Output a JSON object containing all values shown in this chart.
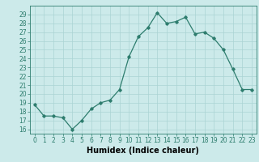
{
  "x": [
    0,
    1,
    2,
    3,
    4,
    5,
    6,
    7,
    8,
    9,
    10,
    11,
    12,
    13,
    14,
    15,
    16,
    17,
    18,
    19,
    20,
    21,
    22,
    23
  ],
  "y": [
    18.8,
    17.5,
    17.5,
    17.3,
    16.0,
    17.0,
    18.3,
    19.0,
    19.3,
    20.5,
    24.2,
    26.5,
    27.5,
    29.2,
    28.0,
    28.2,
    28.7,
    26.8,
    27.0,
    26.3,
    25.0,
    22.8,
    20.5,
    20.5
  ],
  "line_color": "#2e7d6e",
  "marker": "D",
  "marker_size": 1.8,
  "bg_color": "#cceaea",
  "grid_color": "#aad4d4",
  "xlabel": "Humidex (Indice chaleur)",
  "xlim": [
    -0.5,
    23.5
  ],
  "ylim": [
    15.5,
    30.0
  ],
  "yticks": [
    16,
    17,
    18,
    19,
    20,
    21,
    22,
    23,
    24,
    25,
    26,
    27,
    28,
    29
  ],
  "xticks": [
    0,
    1,
    2,
    3,
    4,
    5,
    6,
    7,
    8,
    9,
    10,
    11,
    12,
    13,
    14,
    15,
    16,
    17,
    18,
    19,
    20,
    21,
    22,
    23
  ],
  "tick_label_fontsize": 5.5,
  "xlabel_fontsize": 7.0,
  "line_width": 0.9
}
